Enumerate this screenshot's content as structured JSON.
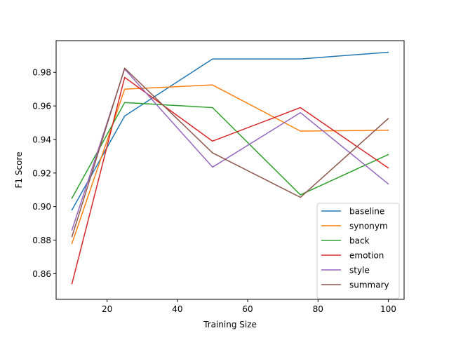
{
  "chart_data": {
    "type": "line",
    "title": "",
    "xlabel": "Training Size",
    "ylabel": "F1 Score",
    "xlim": [
      5.5,
      104.5
    ],
    "ylim": [
      0.8447,
      0.9989
    ],
    "x": [
      10,
      25,
      50,
      75,
      100
    ],
    "x_ticks": [
      20,
      40,
      60,
      80,
      100
    ],
    "y_ticks": [
      0.86,
      0.88,
      0.9,
      0.92,
      0.94,
      0.96,
      0.98
    ],
    "y_tick_labels": [
      "0.86",
      "0.88",
      "0.90",
      "0.92",
      "0.94",
      "0.96",
      "0.98"
    ],
    "grid": false,
    "legend_position": "lower-right",
    "series": [
      {
        "name": "baseline",
        "color": "#1f77b4",
        "values": [
          0.898,
          0.954,
          0.988,
          0.988,
          0.992
        ]
      },
      {
        "name": "synonym",
        "color": "#ff7f0e",
        "values": [
          0.878,
          0.97,
          0.9725,
          0.945,
          0.9455
        ]
      },
      {
        "name": "back",
        "color": "#2ca02c",
        "values": [
          0.905,
          0.962,
          0.959,
          0.907,
          0.931
        ]
      },
      {
        "name": "emotion",
        "color": "#d62728",
        "values": [
          0.854,
          0.977,
          0.939,
          0.959,
          0.923
        ]
      },
      {
        "name": "style",
        "color": "#9467bd",
        "values": [
          0.886,
          0.982,
          0.9235,
          0.956,
          0.9135
        ]
      },
      {
        "name": "summary",
        "color": "#8c564b",
        "values": [
          0.882,
          0.9825,
          0.932,
          0.9055,
          0.9525
        ]
      }
    ]
  }
}
